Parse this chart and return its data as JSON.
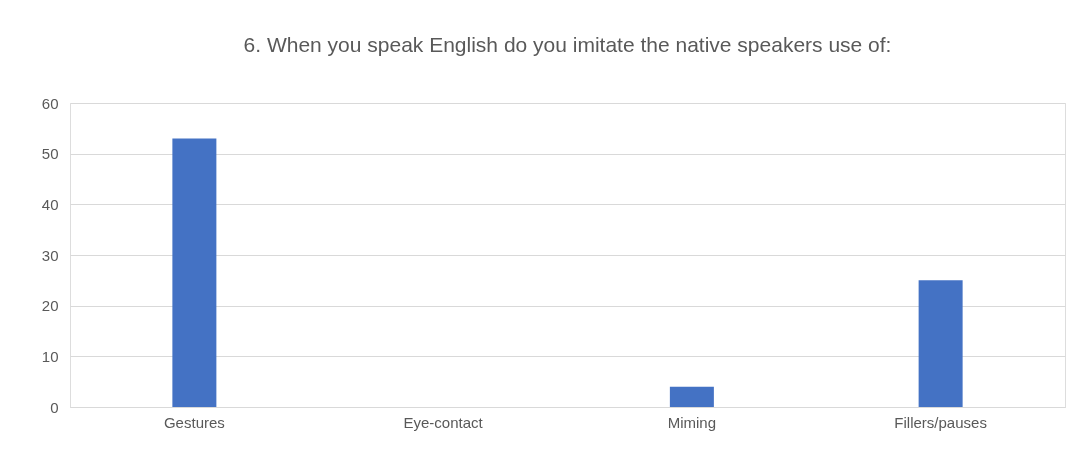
{
  "chart_data": {
    "type": "bar",
    "title": "6. When you speak English do you imitate the native speakers use  of:",
    "categories": [
      "Gestures",
      "Eye-contact",
      "Miming",
      "Fillers/pauses"
    ],
    "values": [
      53,
      0,
      4,
      25
    ],
    "color": "#4472c4",
    "ylim": [
      0,
      60
    ],
    "yticks": [
      0,
      10,
      20,
      30,
      40,
      50,
      60
    ],
    "grid": "y",
    "legend": false
  }
}
